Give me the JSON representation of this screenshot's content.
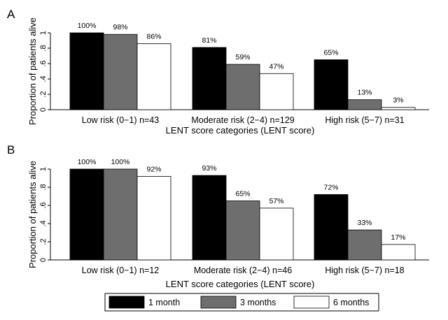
{
  "chart_data": [
    {
      "type": "bar",
      "panel_label": "A",
      "categories": [
        "Low risk (0−1) n=43",
        "Moderate risk (2−4) n=129",
        "High risk (5−7) n=31"
      ],
      "series": [
        {
          "name": "1 month",
          "color": "#000000",
          "values": [
            1.0,
            0.81,
            0.65
          ],
          "labels": [
            "100%",
            "81%",
            "65%"
          ]
        },
        {
          "name": "3 months",
          "color": "#6e6e6e",
          "values": [
            0.98,
            0.59,
            0.13
          ],
          "labels": [
            "98%",
            "59%",
            "13%"
          ]
        },
        {
          "name": "6 months",
          "color": "#ffffff",
          "values": [
            0.86,
            0.47,
            0.03
          ],
          "labels": [
            "86%",
            "47%",
            "3%"
          ]
        }
      ],
      "xlabel": "LENT score categories (LENT score)",
      "ylabel": "Proportion of patients alive",
      "ylim": [
        0,
        1
      ],
      "yticks": [
        0,
        0.2,
        0.4,
        0.6,
        0.8,
        1
      ],
      "ytick_labels": [
        "0",
        ".2",
        ".4",
        ".6",
        ".8",
        "1"
      ],
      "grid": false
    },
    {
      "type": "bar",
      "panel_label": "B",
      "categories": [
        "Low risk (0−1) n=12",
        "Moderate risk (2−4) n=46",
        "High risk (5−7) n=18"
      ],
      "series": [
        {
          "name": "1 month",
          "color": "#000000",
          "values": [
            1.0,
            0.93,
            0.72
          ],
          "labels": [
            "100%",
            "93%",
            "72%"
          ]
        },
        {
          "name": "3 months",
          "color": "#6e6e6e",
          "values": [
            1.0,
            0.65,
            0.33
          ],
          "labels": [
            "100%",
            "65%",
            "33%"
          ]
        },
        {
          "name": "6 months",
          "color": "#ffffff",
          "values": [
            0.92,
            0.57,
            0.17
          ],
          "labels": [
            "92%",
            "57%",
            "17%"
          ]
        }
      ],
      "xlabel": "LENT score categories (LENT score)",
      "ylabel": "Proportion of patients alive",
      "ylim": [
        0,
        1
      ],
      "yticks": [
        0,
        0.2,
        0.4,
        0.6,
        0.8,
        1
      ],
      "ytick_labels": [
        "0",
        ".2",
        ".4",
        ".6",
        ".8",
        "1"
      ],
      "grid": false
    }
  ],
  "legend": {
    "placement": "bottom",
    "items": [
      {
        "name": "1 month",
        "color": "#000000"
      },
      {
        "name": "3 months",
        "color": "#6e6e6e"
      },
      {
        "name": "6 months",
        "color": "#ffffff"
      }
    ]
  }
}
